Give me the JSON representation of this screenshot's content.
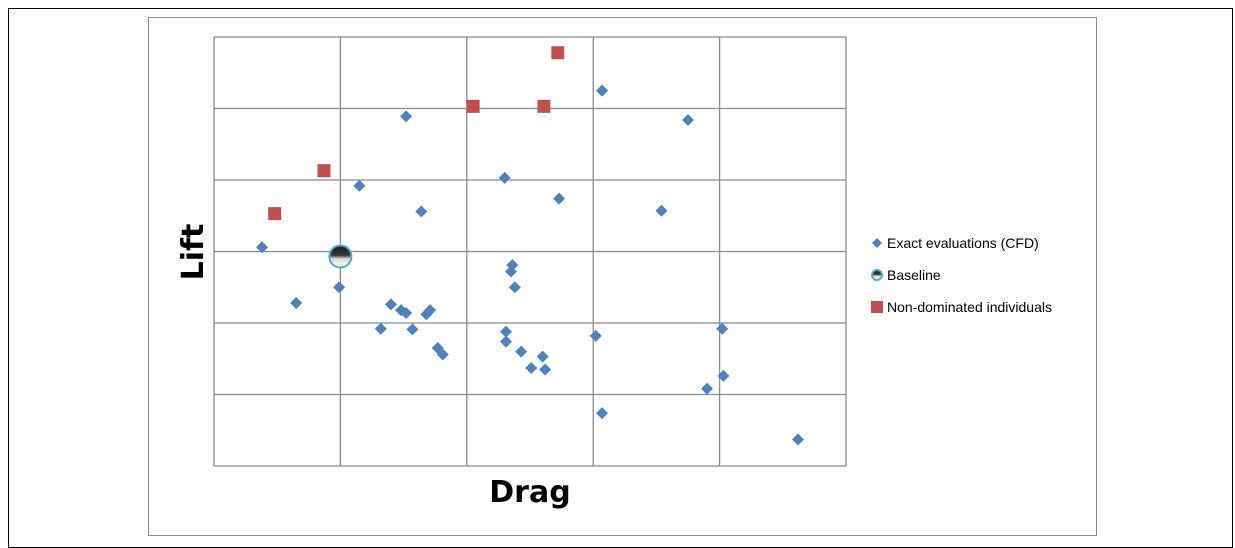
{
  "chart_data": {
    "type": "scatter",
    "xlabel": "Drag",
    "ylabel": "Lift",
    "xlim": [
      0,
      5
    ],
    "ylim": [
      0,
      6
    ],
    "grid": true,
    "legend_position": "right",
    "series": [
      {
        "name": "Exact evaluations (CFD)",
        "marker": "diamond",
        "color": "#4f81bd",
        "points": [
          [
            1.52,
            4.89
          ],
          [
            1.15,
            3.92
          ],
          [
            1.64,
            3.56
          ],
          [
            3.07,
            5.25
          ],
          [
            3.75,
            4.84
          ],
          [
            2.3,
            4.03
          ],
          [
            2.73,
            3.74
          ],
          [
            3.54,
            3.57
          ],
          [
            0.38,
            3.06
          ],
          [
            0.65,
            2.28
          ],
          [
            0.99,
            2.5
          ],
          [
            1.4,
            2.26
          ],
          [
            1.48,
            2.18
          ],
          [
            1.52,
            2.14
          ],
          [
            1.68,
            2.12
          ],
          [
            1.71,
            2.18
          ],
          [
            1.32,
            1.92
          ],
          [
            1.57,
            1.91
          ],
          [
            1.77,
            1.65
          ],
          [
            2.38,
            2.5
          ],
          [
            2.35,
            2.72
          ],
          [
            2.36,
            2.81
          ],
          [
            2.31,
            1.88
          ],
          [
            2.31,
            1.74
          ],
          [
            2.43,
            1.6
          ],
          [
            2.6,
            1.53
          ],
          [
            2.51,
            1.37
          ],
          [
            2.62,
            1.35
          ],
          [
            3.02,
            1.82
          ],
          [
            4.02,
            1.92
          ],
          [
            4.03,
            1.26
          ],
          [
            3.9,
            1.08
          ],
          [
            3.07,
            0.74
          ],
          [
            4.62,
            0.37
          ],
          [
            1.81,
            1.56
          ]
        ]
      },
      {
        "name": "Baseline",
        "marker": "circle",
        "color": "#4bacc6",
        "points": [
          [
            1.0,
            2.93
          ]
        ]
      },
      {
        "name": "Non-dominated individuals",
        "marker": "square",
        "color": "#c0504d",
        "points": [
          [
            0.48,
            3.53
          ],
          [
            0.87,
            4.13
          ],
          [
            2.05,
            5.03
          ],
          [
            2.61,
            5.03
          ],
          [
            2.72,
            5.78
          ]
        ]
      }
    ]
  }
}
